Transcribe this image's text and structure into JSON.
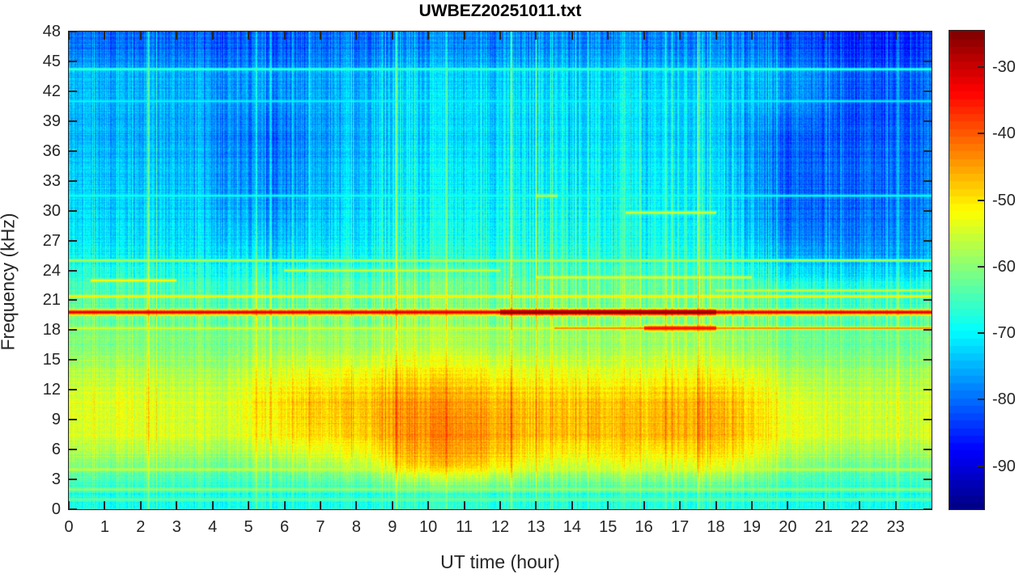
{
  "chart_data": {
    "type": "heatmap",
    "title": "UWBEZ20251011.txt",
    "xlabel": "UT time (hour)",
    "ylabel": "Frequency (kHz)",
    "xlim": [
      0,
      24
    ],
    "ylim": [
      0,
      48
    ],
    "clim": [
      -96.5,
      -24.5
    ],
    "colormap": "jet",
    "x_ticks": [
      0,
      1,
      2,
      3,
      4,
      5,
      6,
      7,
      8,
      9,
      10,
      11,
      12,
      13,
      14,
      15,
      16,
      17,
      18,
      19,
      20,
      21,
      22,
      23
    ],
    "y_ticks": [
      0,
      3,
      6,
      9,
      12,
      15,
      18,
      21,
      24,
      27,
      30,
      33,
      36,
      39,
      42,
      45,
      48
    ],
    "colorbar_ticks": [
      -30,
      -40,
      -50,
      -60,
      -70,
      -80,
      -90
    ],
    "grid_hours": [
      0,
      1,
      2,
      3,
      4,
      5,
      6,
      7,
      8,
      9,
      10,
      11,
      12,
      13,
      14,
      15,
      16,
      17,
      18,
      19,
      20,
      21,
      22,
      23
    ],
    "grid_freq_khz": [
      1.5,
      4.5,
      7.5,
      10.5,
      13.5,
      16.5,
      19.5,
      22.5,
      25.5,
      28.5,
      31.5,
      34.5,
      37.5,
      40.5,
      43.5,
      46.5
    ],
    "grid_db": [
      [
        -68,
        -68,
        -68,
        -68,
        -68,
        -68,
        -68,
        -68,
        -67,
        -66,
        -66,
        -66,
        -67,
        -67,
        -67,
        -67,
        -67,
        -67,
        -67,
        -68,
        -68,
        -68,
        -68,
        -68
      ],
      [
        -60,
        -60,
        -60,
        -61,
        -61,
        -60,
        -58,
        -57,
        -54,
        -48,
        -47,
        -48,
        -52,
        -55,
        -54,
        -53,
        -55,
        -52,
        -53,
        -58,
        -60,
        -61,
        -61,
        -61
      ],
      [
        -55,
        -54,
        -54,
        -55,
        -55,
        -53,
        -50,
        -50,
        -47,
        -44,
        -43,
        -44,
        -47,
        -48,
        -47,
        -48,
        -47,
        -46,
        -47,
        -52,
        -54,
        -55,
        -55,
        -55
      ],
      [
        -54,
        -53,
        -54,
        -55,
        -54,
        -51,
        -48,
        -48,
        -46,
        -44,
        -44,
        -45,
        -47,
        -48,
        -47,
        -48,
        -47,
        -46,
        -47,
        -52,
        -54,
        -55,
        -55,
        -55
      ],
      [
        -57,
        -56,
        -57,
        -58,
        -57,
        -55,
        -53,
        -53,
        -51,
        -50,
        -50,
        -51,
        -53,
        -53,
        -53,
        -54,
        -53,
        -52,
        -53,
        -56,
        -58,
        -58,
        -58,
        -58
      ],
      [
        -61,
        -60,
        -61,
        -61,
        -61,
        -60,
        -59,
        -59,
        -58,
        -57,
        -57,
        -58,
        -59,
        -59,
        -59,
        -59,
        -59,
        -58,
        -59,
        -61,
        -62,
        -62,
        -62,
        -62
      ],
      [
        -62,
        -62,
        -62,
        -62,
        -62,
        -62,
        -61,
        -61,
        -60,
        -59,
        -59,
        -60,
        -60,
        -60,
        -60,
        -60,
        -60,
        -60,
        -61,
        -63,
        -63,
        -63,
        -63,
        -63
      ],
      [
        -66,
        -65,
        -66,
        -66,
        -66,
        -66,
        -65,
        -64,
        -63,
        -62,
        -62,
        -63,
        -63,
        -63,
        -63,
        -63,
        -64,
        -63,
        -64,
        -67,
        -68,
        -68,
        -68,
        -68
      ],
      [
        -70,
        -70,
        -70,
        -71,
        -71,
        -73,
        -71,
        -70,
        -68,
        -67,
        -67,
        -67,
        -67,
        -67,
        -67,
        -68,
        -68,
        -67,
        -69,
        -74,
        -76,
        -76,
        -76,
        -76
      ],
      [
        -72,
        -72,
        -72,
        -73,
        -74,
        -77,
        -74,
        -73,
        -70,
        -69,
        -69,
        -69,
        -69,
        -69,
        -69,
        -69,
        -70,
        -69,
        -72,
        -78,
        -80,
        -79,
        -79,
        -78
      ],
      [
        -73,
        -73,
        -73,
        -74,
        -76,
        -79,
        -76,
        -74,
        -71,
        -70,
        -70,
        -70,
        -70,
        -70,
        -70,
        -70,
        -71,
        -70,
        -73,
        -79,
        -81,
        -80,
        -80,
        -79
      ],
      [
        -74,
        -74,
        -74,
        -75,
        -77,
        -80,
        -77,
        -75,
        -72,
        -71,
        -71,
        -71,
        -71,
        -71,
        -71,
        -71,
        -72,
        -71,
        -74,
        -80,
        -81,
        -80,
        -80,
        -80
      ],
      [
        -75,
        -75,
        -75,
        -76,
        -78,
        -81,
        -78,
        -76,
        -73,
        -72,
        -72,
        -72,
        -72,
        -72,
        -72,
        -72,
        -73,
        -72,
        -75,
        -80,
        -81,
        -81,
        -81,
        -80
      ],
      [
        -75,
        -75,
        -75,
        -76,
        -77,
        -79,
        -77,
        -76,
        -73,
        -72,
        -72,
        -72,
        -72,
        -72,
        -72,
        -72,
        -73,
        -72,
        -74,
        -77,
        -78,
        -81,
        -82,
        -81
      ],
      [
        -75,
        -75,
        -75,
        -76,
        -77,
        -78,
        -77,
        -76,
        -74,
        -73,
        -73,
        -73,
        -73,
        -73,
        -73,
        -73,
        -74,
        -73,
        -74,
        -76,
        -77,
        -80,
        -81,
        -80
      ],
      [
        -80,
        -80,
        -80,
        -81,
        -81,
        -82,
        -81,
        -80,
        -79,
        -78,
        -78,
        -78,
        -78,
        -78,
        -78,
        -78,
        -79,
        -78,
        -79,
        -81,
        -82,
        -84,
        -85,
        -84
      ]
    ],
    "narrowband_lines": [
      {
        "freq_khz": 19.8,
        "start_hour": 0,
        "end_hour": 24,
        "db": -31
      },
      {
        "freq_khz": 19.8,
        "start_hour": 12,
        "end_hour": 18,
        "db": -26
      },
      {
        "freq_khz": 18.2,
        "start_hour": 0,
        "end_hour": 13.5,
        "db": -54
      },
      {
        "freq_khz": 18.2,
        "start_hour": 13.5,
        "end_hour": 24,
        "db": -42
      },
      {
        "freq_khz": 18.2,
        "start_hour": 16,
        "end_hour": 18,
        "db": -34
      },
      {
        "freq_khz": 21.4,
        "start_hour": 0,
        "end_hour": 24,
        "db": -50
      },
      {
        "freq_khz": 22.0,
        "start_hour": 18,
        "end_hour": 24,
        "db": -55
      },
      {
        "freq_khz": 25.0,
        "start_hour": 0,
        "end_hour": 24,
        "db": -57
      },
      {
        "freq_khz": 23.0,
        "start_hour": 0.6,
        "end_hour": 3.0,
        "db": -50
      },
      {
        "freq_khz": 24.0,
        "start_hour": 6.0,
        "end_hour": 12.0,
        "db": -55
      },
      {
        "freq_khz": 23.3,
        "start_hour": 13.0,
        "end_hour": 19.0,
        "db": -52
      },
      {
        "freq_khz": 29.8,
        "start_hour": 15.5,
        "end_hour": 18.0,
        "db": -54
      },
      {
        "freq_khz": 31.5,
        "start_hour": 13.0,
        "end_hour": 13.6,
        "db": -54
      },
      {
        "freq_khz": 31.5,
        "start_hour": 0,
        "end_hour": 24,
        "db": -68
      },
      {
        "freq_khz": 44.2,
        "start_hour": 0,
        "end_hour": 24,
        "db": -64
      },
      {
        "freq_khz": 41.0,
        "start_hour": 0,
        "end_hour": 24,
        "db": -70
      },
      {
        "freq_khz": 4.0,
        "start_hour": 0,
        "end_hour": 24,
        "db": -55
      },
      {
        "freq_khz": 2.0,
        "start_hour": 0,
        "end_hour": 24,
        "db": -58
      },
      {
        "freq_khz": 1.0,
        "start_hour": 0,
        "end_hour": 24,
        "db": -62
      },
      {
        "freq_khz": 0.2,
        "start_hour": 0,
        "end_hour": 24,
        "db": -82
      }
    ],
    "broadband_events_hour": [
      2.2,
      5.2,
      9.1,
      10.5,
      12.3,
      13.0,
      16.6,
      17.5
    ]
  }
}
